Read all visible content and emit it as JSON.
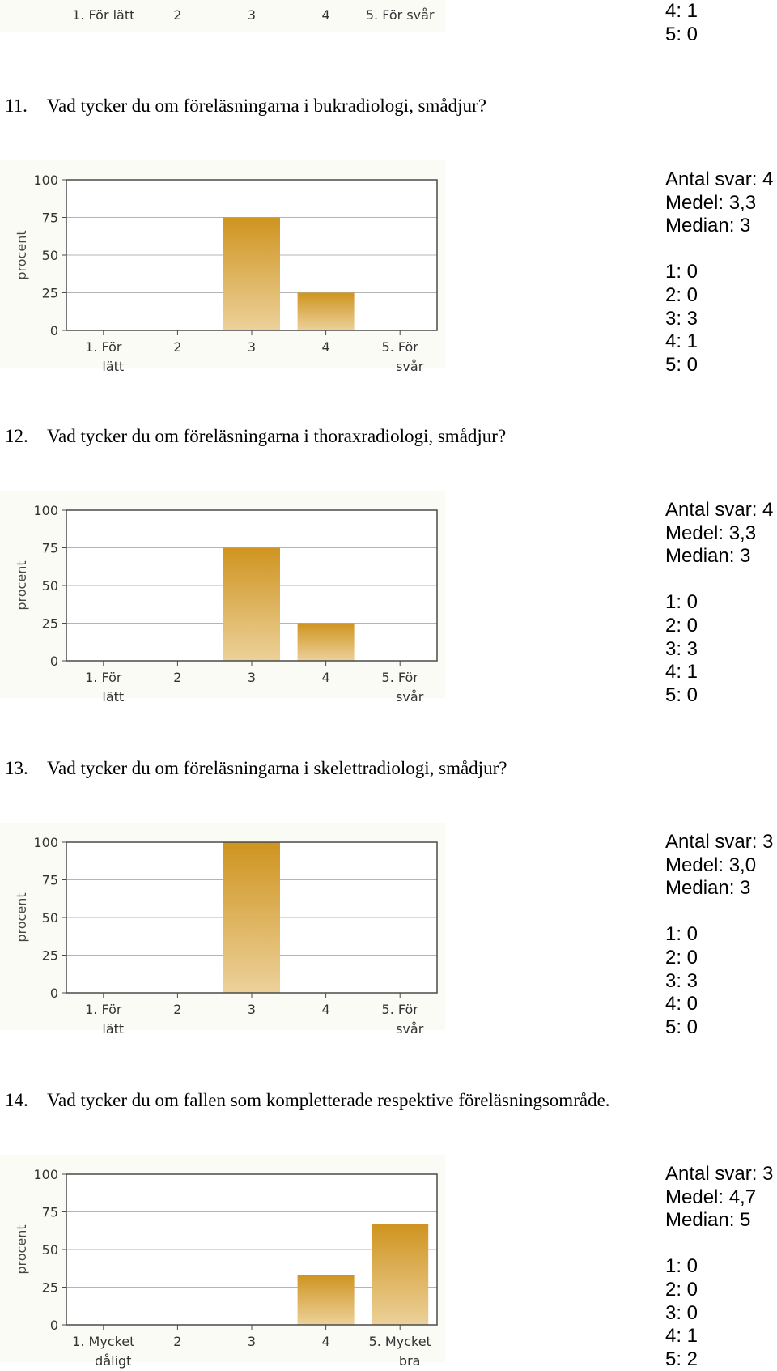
{
  "prev_block": {
    "stats": [
      "4: 1",
      "5: 0"
    ],
    "x_tick_labels": [
      "1. För lätt",
      "2",
      "3",
      "4",
      "5. För svår"
    ]
  },
  "questions": [
    {
      "number": "11.",
      "text": "Vad tycker du om föreläsningarna i bukradiologi, smådjur?",
      "stats": {
        "summary": [
          "Antal svar: 4",
          "Medel: 3,3",
          "Median: 3"
        ],
        "counts": [
          "1: 0",
          "2: 0",
          "3: 3",
          "4: 1",
          "5: 0"
        ]
      }
    },
    {
      "number": "12.",
      "text": "Vad tycker du om föreläsningarna i thoraxradiologi, smådjur?",
      "stats": {
        "summary": [
          "Antal svar: 4",
          "Medel: 3,3",
          "Median: 3"
        ],
        "counts": [
          "1: 0",
          "2: 0",
          "3: 3",
          "4: 1",
          "5: 0"
        ]
      }
    },
    {
      "number": "13.",
      "text": "Vad tycker du om föreläsningarna i skelettradiologi, smådjur?",
      "stats": {
        "summary": [
          "Antal svar: 3",
          "Medel: 3,0",
          "Median: 3"
        ],
        "counts": [
          "1: 0",
          "2: 0",
          "3: 3",
          "4: 0",
          "5: 0"
        ]
      }
    },
    {
      "number": "14.",
      "text": "Vad tycker du om fallen som kompletterade respektive föreläsningsområde.",
      "stats": {
        "summary": [
          "Antal svar: 3",
          "Medel: 4,7",
          "Median: 5"
        ],
        "counts": [
          "1: 0",
          "2: 0",
          "3: 0",
          "4: 1",
          "5: 2"
        ]
      }
    }
  ],
  "chart_data": [
    {
      "type": "bar",
      "categories": [
        "1. För lätt",
        "2",
        "3",
        "4",
        "5. För svår"
      ],
      "values": [
        0,
        0,
        75,
        25,
        0
      ],
      "ylabel": "procent",
      "ylim": [
        0,
        100
      ],
      "yticks": [
        "100",
        "75",
        "50",
        "25",
        "0"
      ],
      "grid": true
    },
    {
      "type": "bar",
      "categories": [
        "1. För lätt",
        "2",
        "3",
        "4",
        "5. För svår"
      ],
      "values": [
        0,
        0,
        75,
        25,
        0
      ],
      "ylabel": "procent",
      "ylim": [
        0,
        100
      ],
      "yticks": [
        "100",
        "75",
        "50",
        "25",
        "0"
      ],
      "grid": true
    },
    {
      "type": "bar",
      "categories": [
        "1. För lätt",
        "2",
        "3",
        "4",
        "5. För svår"
      ],
      "values": [
        0,
        0,
        100,
        0,
        0
      ],
      "ylabel": "procent",
      "ylim": [
        0,
        100
      ],
      "yticks": [
        "100",
        "75",
        "50",
        "25",
        "0"
      ],
      "grid": true
    },
    {
      "type": "bar",
      "categories": [
        "1. Mycket dåligt",
        "2",
        "3",
        "4",
        "5. Mycket bra"
      ],
      "values": [
        0,
        0,
        0,
        33.3,
        66.7
      ],
      "ylabel": "procent",
      "ylim": [
        0,
        100
      ],
      "yticks": [
        "100",
        "75",
        "50",
        "25",
        "0"
      ],
      "grid": true
    }
  ],
  "colors": {
    "bar_top": "#cf9420",
    "bar_bottom": "#ecd19a",
    "grid": "#b4b4b4",
    "frame": "#4a4a4a"
  }
}
